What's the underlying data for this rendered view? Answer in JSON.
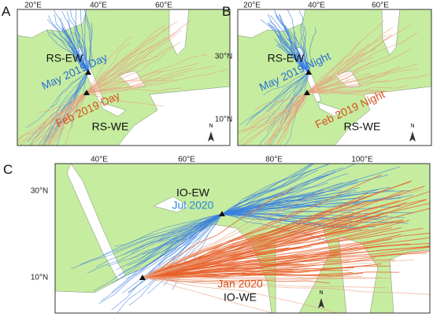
{
  "panels": [
    {
      "label": "A",
      "lon_ticks": [
        "20°E",
        "40°E",
        "60°E"
      ],
      "annotations": [
        "RS-EW",
        "May 2019 Day",
        "Feb 2019 Day",
        "RS-WE"
      ],
      "north": "N"
    },
    {
      "label": "B",
      "lon_ticks": [
        "20°E",
        "40°E",
        "60°E"
      ],
      "lat_ticks": [
        "30°N",
        "10°N"
      ],
      "annotations": [
        "RS-EW",
        "May 2019 Night",
        "Feb 2019 Night",
        "RS-WE"
      ],
      "north": "N"
    },
    {
      "label": "C",
      "lon_ticks": [
        "40°E",
        "60°E",
        "80°E",
        "100°E"
      ],
      "lat_ticks": [
        "30°N",
        "10°N"
      ],
      "annotations": [
        "IO-EW",
        "Jul 2020",
        "Jan 2020",
        "IO-WE"
      ],
      "north": "N"
    }
  ]
}
